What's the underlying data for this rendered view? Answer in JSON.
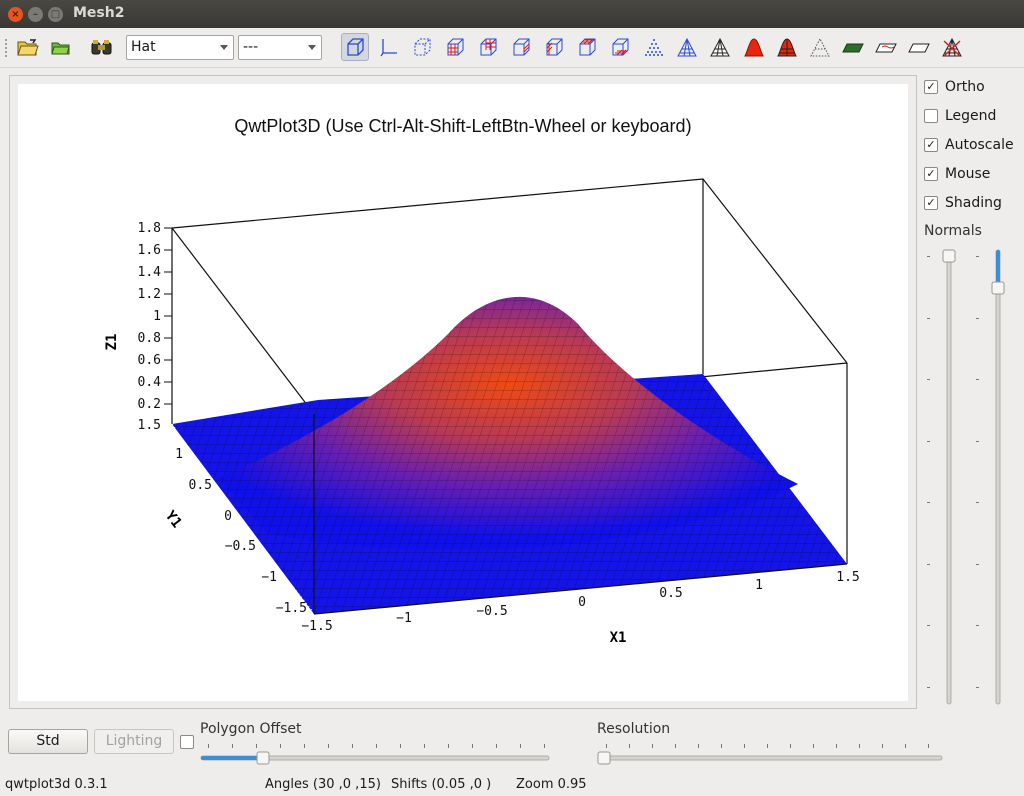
{
  "window": {
    "title": "Mesh2"
  },
  "toolbar": {
    "function_combo": "Hat",
    "coord_combo": "---"
  },
  "plot": {
    "title": "QwtPlot3D (Use Ctrl-Alt-Shift-LeftBtn-Wheel or keyboard)",
    "x_label": "X1",
    "y_label": "Y1",
    "z_label": "Z1",
    "x_ticks": [
      "−1.5",
      "−1",
      "−0.5",
      "0",
      "0.5",
      "1",
      "1.5"
    ],
    "y_ticks": [
      "−1.5",
      "−1",
      "−0.5",
      "0",
      "0.5",
      "1"
    ],
    "z_ticks": [
      "0.2",
      "0.4",
      "0.6",
      "0.8",
      "1",
      "1.2",
      "1.4",
      "1.6",
      "1.8"
    ],
    "z_bottom_tick": "1.5"
  },
  "side": {
    "ortho": "Ortho",
    "legend": "Legend",
    "autoscale": "Autoscale",
    "mouse": "Mouse",
    "shading": "Shading",
    "normals": "Normals",
    "check_mark": "✓"
  },
  "bottom": {
    "std_button": "Std",
    "lighting_button": "Lighting",
    "polygon_offset": "Polygon Offset",
    "resolution": "Resolution"
  },
  "status": {
    "version": "qwtplot3d 0.3.1",
    "angles": "Angles (30 ,0 ,15)",
    "shifts": "Shifts (0.05 ,0 )",
    "zoom": "Zoom 0.95"
  },
  "colors": {
    "surface_low": "#0a0ae6",
    "surface_mid": "#8a2a8c",
    "surface_high": "#f04a12",
    "accent": "#3a8fd8"
  }
}
